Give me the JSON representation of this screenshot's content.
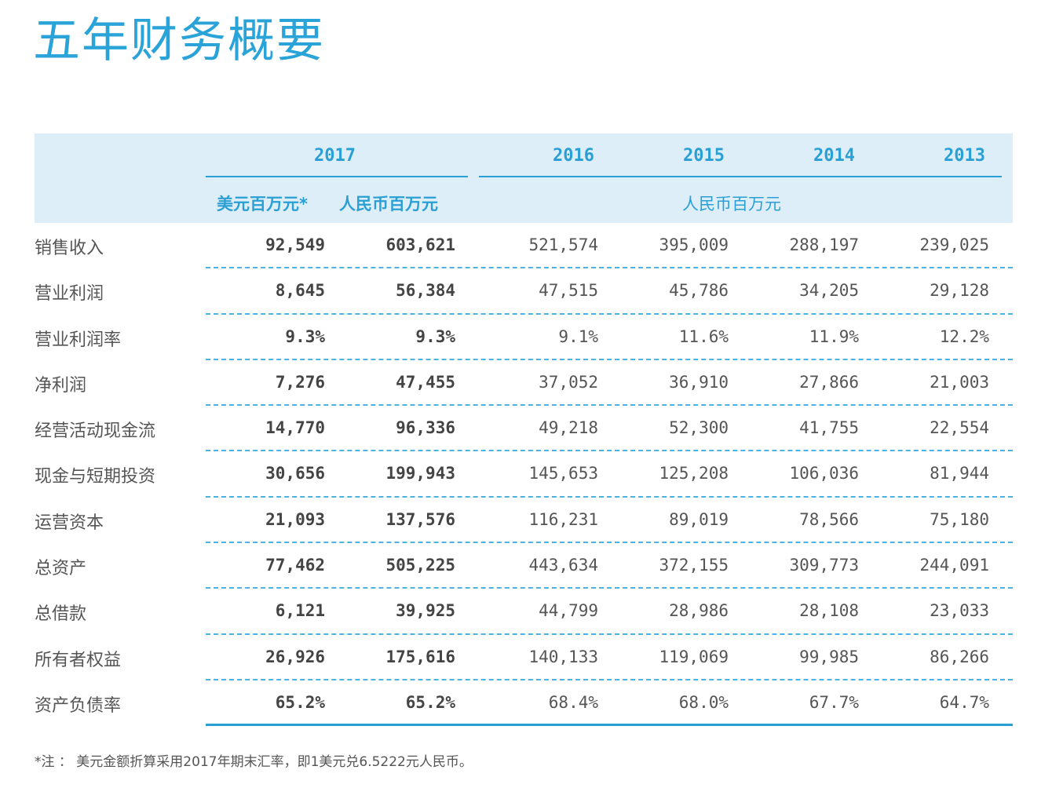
{
  "title": "五年财务概要",
  "header": {
    "years": [
      "2017",
      "2016",
      "2015",
      "2014",
      "2013"
    ],
    "unit_usd": "美元百万元*",
    "unit_rmb_2017": "人民币百万元",
    "unit_rmb_other": "人民币百万元"
  },
  "rows": [
    {
      "label": "销售收入",
      "values": [
        "92,549",
        "603,621",
        "521,574",
        "395,009",
        "288,197",
        "239,025"
      ]
    },
    {
      "label": "营业利润",
      "values": [
        "8,645",
        "56,384",
        "47,515",
        "45,786",
        "34,205",
        "29,128"
      ]
    },
    {
      "label": "营业利润率",
      "values": [
        "9.3%",
        "9.3%",
        "9.1%",
        "11.6%",
        "11.9%",
        "12.2%"
      ]
    },
    {
      "label": "净利润",
      "values": [
        "7,276",
        "47,455",
        "37,052",
        "36,910",
        "27,866",
        "21,003"
      ]
    },
    {
      "label": "经营活动现金流",
      "values": [
        "14,770",
        "96,336",
        "49,218",
        "52,300",
        "41,755",
        "22,554"
      ]
    },
    {
      "label": "现金与短期投资",
      "values": [
        "30,656",
        "199,943",
        "145,653",
        "125,208",
        "106,036",
        "81,944"
      ]
    },
    {
      "label": "运营资本",
      "values": [
        "21,093",
        "137,576",
        "116,231",
        "89,019",
        "78,566",
        "75,180"
      ]
    },
    {
      "label": "总资产",
      "values": [
        "77,462",
        "505,225",
        "443,634",
        "372,155",
        "309,773",
        "244,091"
      ]
    },
    {
      "label": "总借款",
      "values": [
        "6,121",
        "39,925",
        "44,799",
        "28,986",
        "28,108",
        "23,033"
      ]
    },
    {
      "label": "所有者权益",
      "values": [
        "26,926",
        "175,616",
        "140,133",
        "119,069",
        "99,985",
        "86,266"
      ]
    },
    {
      "label": "资产负债率",
      "values": [
        "65.2%",
        "65.2%",
        "68.4%",
        "68.0%",
        "67.7%",
        "64.7%"
      ]
    }
  ],
  "footnote": "*注 ： 美元金额折算采用2017年期末汇率，即1美元兑6.5222元人民币。"
}
